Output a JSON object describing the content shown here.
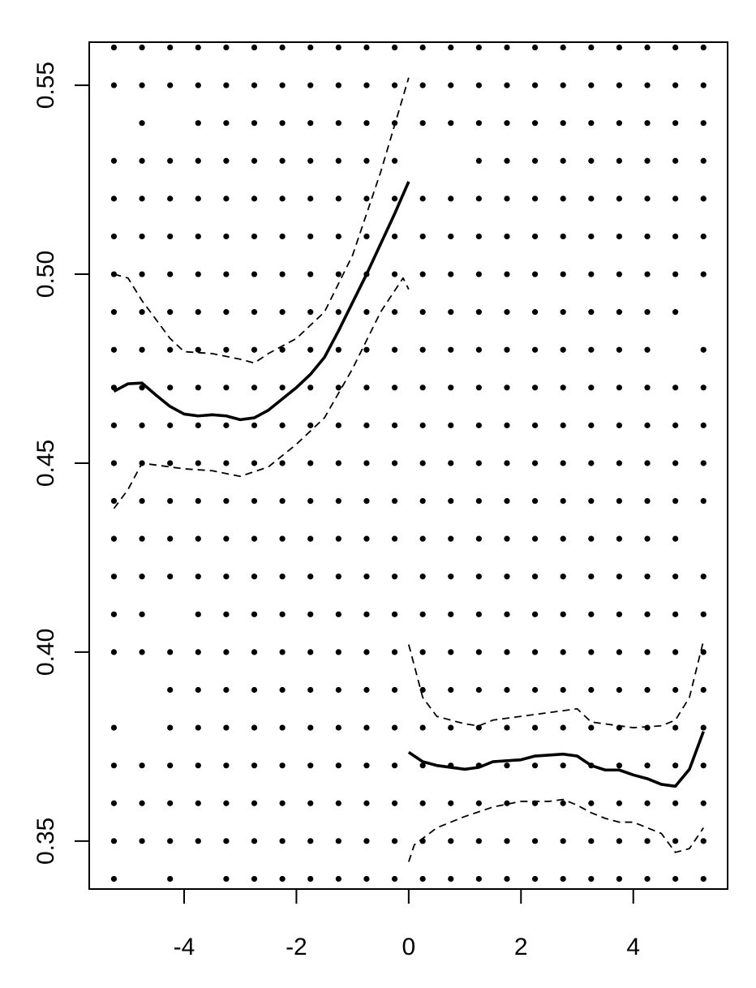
{
  "chart_data": {
    "type": "scatter",
    "xlim": [
      -5.69,
      5.68
    ],
    "ylim": [
      0.3373,
      0.5614
    ],
    "xticks": [
      -4,
      -2,
      0,
      2,
      4
    ],
    "yticks": [
      0.35,
      {
        "value": 0.4,
        "label": "0.40"
      },
      0.45,
      {
        "value": 0.5,
        "label": "0.50"
      },
      0.55
    ],
    "color": "#000000",
    "dot_rows": [
      {
        "y": 0.56,
        "x": [
          -5.25,
          -4.75,
          -4.25,
          -3.75,
          -3.25,
          -2.75,
          -2.25,
          -1.75,
          -1.25,
          -0.75,
          -0.25,
          0.25,
          0.75,
          1.25,
          1.75,
          2.25,
          2.75,
          3.25,
          3.75,
          4.25,
          4.75,
          5.25
        ]
      },
      {
        "y": 0.55,
        "x": [
          -5.25,
          -4.75,
          -4.25,
          -3.75,
          -3.25,
          -2.75,
          -2.25,
          -1.75,
          -1.25,
          -0.75,
          -0.25,
          0.25,
          0.75,
          1.25,
          1.75,
          2.25,
          2.75,
          3.25,
          3.75,
          4.25,
          4.75,
          5.25
        ]
      },
      {
        "y": 0.54,
        "x": [
          -4.75,
          -3.75,
          -3.25,
          -2.75,
          -2.25,
          -1.75,
          -1.25,
          -0.75,
          -0.25,
          0.25,
          0.75,
          1.25,
          1.75,
          2.25,
          2.75,
          3.25,
          3.75,
          4.25,
          4.75,
          5.25
        ]
      },
      {
        "y": 0.53,
        "x": [
          -5.25,
          -4.75,
          -4.25,
          -3.75,
          -3.25,
          -2.75,
          -2.25,
          -1.75,
          -1.25,
          -0.75,
          -0.25,
          1.25,
          1.75,
          2.25,
          2.75,
          3.25,
          3.75,
          4.25,
          4.75,
          5.25
        ]
      },
      {
        "y": 0.52,
        "x": [
          -5.25,
          -4.75,
          -4.25,
          -3.75,
          -3.25,
          -2.75,
          -2.25,
          -1.75,
          -1.25,
          -0.75,
          -0.25,
          0.25,
          0.75,
          1.25,
          1.75,
          2.25,
          2.75,
          3.25,
          3.75,
          4.25,
          4.75,
          5.25
        ]
      },
      {
        "y": 0.51,
        "x": [
          -5.25,
          -4.75,
          -4.25,
          -3.75,
          -3.25,
          -2.75,
          -2.25,
          -1.75,
          -1.25,
          -0.75,
          -0.25,
          0.25,
          0.75,
          1.25,
          1.75,
          2.25,
          2.75,
          3.25,
          3.75,
          4.25,
          4.75,
          5.25
        ]
      },
      {
        "y": 0.5,
        "x": [
          -5.25,
          -4.75,
          -4.25,
          -3.75,
          -3.25,
          -2.75,
          -2.25,
          -1.75,
          -1.25,
          -0.75,
          -0.25,
          0.25,
          0.75,
          1.25,
          1.75,
          2.25,
          2.75,
          3.25,
          3.75,
          4.25,
          4.75,
          5.25
        ]
      },
      {
        "y": 0.49,
        "x": [
          -5.25,
          -4.75,
          -4.25,
          -3.75,
          -3.25,
          -2.75,
          -2.25,
          -1.75,
          -1.25,
          -0.75,
          -0.25,
          0.25,
          0.75,
          1.25,
          1.75,
          2.25,
          2.75,
          3.25,
          3.75,
          4.25,
          4.75
        ]
      },
      {
        "y": 0.48,
        "x": [
          -5.25,
          -4.75,
          -4.25,
          -3.75,
          -3.25,
          -2.75,
          -2.25,
          -1.75,
          -1.25,
          -0.75,
          -0.25,
          0.25,
          0.75,
          1.25,
          1.75,
          2.25,
          2.75,
          3.25,
          3.75,
          4.25,
          5.25
        ]
      },
      {
        "y": 0.47,
        "x": [
          -5.25,
          -4.75,
          -4.25,
          -3.75,
          -3.25,
          -2.75,
          -2.25,
          -1.75,
          -1.25,
          -0.75,
          -0.25,
          0.25,
          0.75,
          1.25,
          1.75,
          2.25,
          2.75,
          3.25,
          3.75,
          4.25,
          4.75,
          5.25
        ]
      },
      {
        "y": 0.46,
        "x": [
          -5.25,
          -4.75,
          -4.25,
          -3.75,
          -3.25,
          -2.75,
          -2.25,
          -1.75,
          -1.25,
          -0.75,
          -0.25,
          0.25,
          0.75,
          1.25,
          1.75,
          2.25,
          2.75,
          3.25,
          3.75,
          4.25,
          4.75,
          5.25
        ]
      },
      {
        "y": 0.45,
        "x": [
          -5.25,
          -4.75,
          -4.25,
          -3.75,
          -3.25,
          -2.75,
          -2.25,
          -1.75,
          -1.25,
          -0.75,
          -0.25,
          0.25,
          0.75,
          1.25,
          1.75,
          2.25,
          2.75,
          3.25,
          3.75,
          4.25,
          4.75,
          5.25
        ]
      },
      {
        "y": 0.44,
        "x": [
          -5.25,
          -4.75,
          -4.25,
          -3.75,
          -3.25,
          -2.75,
          -2.25,
          -1.75,
          -1.25,
          -0.75,
          -0.25,
          0.25,
          0.75,
          1.25,
          1.75,
          2.25,
          2.75,
          3.25,
          3.75,
          4.25,
          4.75,
          5.25
        ]
      },
      {
        "y": 0.43,
        "x": [
          -5.25,
          -4.75,
          -4.25,
          -3.75,
          -3.25,
          -2.75,
          -2.25,
          -1.75,
          -1.25,
          -0.75,
          -0.25,
          0.25,
          0.75,
          1.25,
          1.75,
          2.25,
          2.75,
          3.25,
          3.75,
          4.25,
          4.75
        ]
      },
      {
        "y": 0.42,
        "x": [
          -5.25,
          -4.75,
          -4.25,
          -3.75,
          -3.25,
          -2.75,
          -2.25,
          -1.75,
          -1.25,
          -0.75,
          -0.25,
          0.25,
          0.75,
          1.25,
          1.75,
          2.25,
          2.75,
          3.25,
          3.75,
          4.25,
          4.75,
          5.25
        ]
      },
      {
        "y": 0.41,
        "x": [
          -5.25,
          -4.75,
          -3.75,
          -3.25,
          -2.75,
          -2.25,
          -1.75,
          -1.25,
          -0.75,
          -0.25,
          0.25,
          0.75,
          1.25,
          1.75,
          2.25,
          2.75,
          3.25,
          3.75,
          4.25,
          4.75,
          5.25
        ]
      },
      {
        "y": 0.4,
        "x": [
          -5.25,
          -4.75,
          -4.25,
          -3.75,
          -3.25,
          -2.75,
          -2.25,
          -1.75,
          -1.25,
          -0.75,
          -0.25,
          0.25,
          0.75,
          1.25,
          1.75,
          2.25,
          2.75,
          3.25,
          3.75,
          4.25,
          4.75,
          5.25
        ]
      },
      {
        "y": 0.39,
        "x": [
          -4.25,
          -3.75,
          -3.25,
          -2.75,
          -2.25,
          -1.75,
          -1.25,
          -0.75,
          -0.25,
          0.25,
          0.75,
          1.25,
          1.75,
          2.25,
          2.75,
          3.25,
          3.75,
          4.25,
          4.75,
          5.25
        ]
      },
      {
        "y": 0.38,
        "x": [
          -5.25,
          -4.25,
          -3.75,
          -3.25,
          -2.75,
          -2.25,
          -1.75,
          -1.25,
          -0.75,
          -0.25,
          0.25,
          0.75,
          1.25,
          1.75,
          2.25,
          2.75,
          3.25,
          3.75,
          4.25,
          4.75,
          5.25
        ]
      },
      {
        "y": 0.37,
        "x": [
          -5.25,
          -4.75,
          -4.25,
          -3.75,
          -3.25,
          -2.75,
          -2.25,
          -1.75,
          -1.25,
          -0.75,
          -0.25,
          0.25,
          0.75,
          1.25,
          1.75,
          2.25,
          2.75,
          3.25,
          3.75,
          4.25,
          4.75,
          5.25
        ]
      },
      {
        "y": 0.36,
        "x": [
          -5.25,
          -4.75,
          -4.25,
          -3.75,
          -3.25,
          -2.75,
          -2.25,
          -1.75,
          -1.25,
          -0.75,
          -0.25,
          0.25,
          0.75,
          1.25,
          1.75,
          2.25,
          2.75,
          3.25,
          3.75,
          4.25,
          4.75,
          5.25
        ]
      },
      {
        "y": 0.35,
        "x": [
          -5.25,
          -4.75,
          -4.25,
          -3.75,
          -3.25,
          -2.75,
          -2.25,
          -1.75,
          -1.25,
          -0.75,
          -0.25,
          0.25,
          0.75,
          1.25,
          1.75,
          2.25,
          2.75,
          3.25,
          3.75,
          4.25,
          4.75,
          5.25
        ]
      },
      {
        "y": 0.34,
        "x": [
          -5.25,
          -4.25,
          -3.25,
          -2.75,
          -2.25,
          -1.75,
          -1.25,
          -0.75,
          -0.25,
          0.25,
          0.75,
          1.25,
          1.75,
          2.25,
          2.75,
          3.25,
          3.75,
          4.25,
          4.75,
          5.25
        ]
      }
    ],
    "lines": [
      {
        "style": "solid",
        "x": [
          -5.25,
          -5.0,
          -4.75,
          -4.5,
          -4.25,
          -4.0,
          -3.75,
          -3.5,
          -3.25,
          -3.0,
          -2.75,
          -2.5,
          -2.25,
          -2.0,
          -1.75,
          -1.5,
          -1.25,
          -1.0,
          -0.75,
          -0.5,
          -0.25,
          0.0
        ],
        "y": [
          0.469,
          0.471,
          0.4712,
          0.468,
          0.465,
          0.463,
          0.4625,
          0.4628,
          0.4625,
          0.4615,
          0.462,
          0.464,
          0.467,
          0.47,
          0.4735,
          0.478,
          0.485,
          0.4925,
          0.5,
          0.508,
          0.516,
          0.5245
        ]
      },
      {
        "style": "dashed",
        "x": [
          -5.25,
          -5.0,
          -4.75,
          -4.5,
          -4.25,
          -4.0,
          -3.5,
          -3.0,
          -2.75,
          -2.5,
          -2.0,
          -1.5,
          -1.0,
          -0.5,
          0.0
        ],
        "y": [
          0.5,
          0.499,
          0.493,
          0.488,
          0.483,
          0.4795,
          0.479,
          0.4775,
          0.4765,
          0.479,
          0.483,
          0.49,
          0.505,
          0.527,
          0.552
        ]
      },
      {
        "style": "dashed",
        "x": [
          -5.25,
          -5.0,
          -4.75,
          -4.5,
          -4.0,
          -3.5,
          -3.0,
          -2.5,
          -2.0,
          -1.5,
          -1.0,
          -0.5,
          -0.1,
          0.0
        ],
        "y": [
          0.438,
          0.443,
          0.45,
          0.4495,
          0.4485,
          0.448,
          0.4465,
          0.449,
          0.455,
          0.462,
          0.475,
          0.49,
          0.499,
          0.496
        ]
      },
      {
        "style": "solid",
        "x": [
          0.0,
          0.25,
          0.5,
          1.0,
          1.25,
          1.5,
          2.0,
          2.25,
          2.75,
          3.0,
          3.25,
          3.5,
          3.75,
          4.0,
          4.25,
          4.5,
          4.75,
          5.0,
          5.25
        ],
        "y": [
          0.3735,
          0.371,
          0.37,
          0.369,
          0.3695,
          0.371,
          0.3715,
          0.3725,
          0.373,
          0.3725,
          0.37,
          0.3688,
          0.3688,
          0.3675,
          0.3665,
          0.365,
          0.3645,
          0.369,
          0.379
        ]
      },
      {
        "style": "dashed",
        "x": [
          0.0,
          0.25,
          0.5,
          1.0,
          1.25,
          1.5,
          2.0,
          2.5,
          3.0,
          3.25,
          3.5,
          4.0,
          4.5,
          4.75,
          5.0,
          5.25
        ],
        "y": [
          0.402,
          0.388,
          0.383,
          0.381,
          0.3805,
          0.382,
          0.383,
          0.384,
          0.385,
          0.3815,
          0.381,
          0.38,
          0.3805,
          0.382,
          0.388,
          0.403
        ]
      },
      {
        "style": "dashed",
        "x": [
          0.0,
          0.1,
          0.5,
          1.0,
          1.5,
          2.0,
          2.5,
          2.75,
          3.0,
          3.25,
          3.5,
          3.75,
          4.0,
          4.5,
          4.75,
          5.0,
          5.25
        ],
        "y": [
          0.3445,
          0.349,
          0.3535,
          0.3565,
          0.359,
          0.3605,
          0.3605,
          0.361,
          0.3595,
          0.3575,
          0.356,
          0.355,
          0.355,
          0.352,
          0.347,
          0.348,
          0.3535
        ]
      }
    ]
  }
}
